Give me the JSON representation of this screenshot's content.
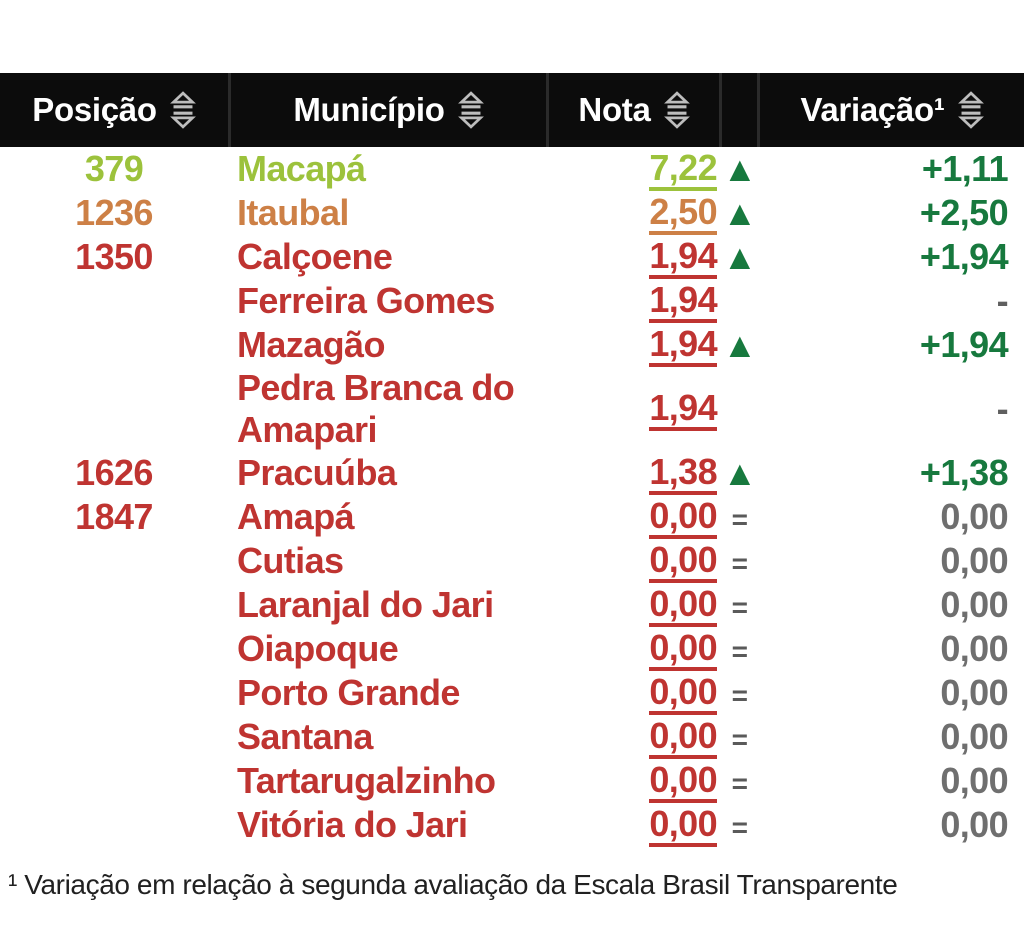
{
  "colors": {
    "lime": "#9cc23c",
    "orange": "#cd8046",
    "red": "#bf3431",
    "green": "#17793e",
    "gray": "#6f6f6f",
    "equal-gray": "#5a5a5a",
    "dash-gray": "#5f5f5f",
    "header-bg": "#0c0c0c",
    "header-divider": "#2b2b2b",
    "header-text": "#ffffff",
    "icon-gray": "#bdbdbd",
    "footnote-text": "#212121",
    "page-bg": "#ffffff"
  },
  "icons": {
    "sort_icon": "sort-arrows-icon",
    "trend_up_glyph": "▲",
    "trend_equal_glyph": "="
  },
  "table": {
    "headers": [
      {
        "label": "Posição",
        "sortable": true
      },
      {
        "label": "Município",
        "sortable": true
      },
      {
        "label": "Nota",
        "sortable": true
      },
      {
        "label": "",
        "sortable": false
      },
      {
        "label": "Variação¹",
        "sortable": true
      }
    ],
    "rows": [
      {
        "position": "379",
        "municipality": "Macapá",
        "score": "7,22",
        "trend": "up",
        "variation": "+1,11",
        "theme": "lime"
      },
      {
        "position": "1236",
        "municipality": "Itaubal",
        "score": "2,50",
        "trend": "up",
        "variation": "+2,50",
        "theme": "orange"
      },
      {
        "position": "1350",
        "municipality": "Calçoene",
        "score": "1,94",
        "trend": "up",
        "variation": "+1,94",
        "theme": "red"
      },
      {
        "position": "",
        "municipality": "Ferreira Gomes",
        "score": "1,94",
        "trend": "none",
        "variation": "-",
        "theme": "red"
      },
      {
        "position": "",
        "municipality": "Mazagão",
        "score": "1,94",
        "trend": "up",
        "variation": "+1,94",
        "theme": "red"
      },
      {
        "position": "",
        "municipality": "Pedra Branca do Amapari",
        "score": "1,94",
        "trend": "none",
        "variation": "-",
        "theme": "red"
      },
      {
        "position": "1626",
        "municipality": "Pracuúba",
        "score": "1,38",
        "trend": "up",
        "variation": "+1,38",
        "theme": "red"
      },
      {
        "position": "1847",
        "municipality": "Amapá",
        "score": "0,00",
        "trend": "equal",
        "variation": "0,00",
        "theme": "red"
      },
      {
        "position": "",
        "municipality": "Cutias",
        "score": "0,00",
        "trend": "equal",
        "variation": "0,00",
        "theme": "red"
      },
      {
        "position": "",
        "municipality": "Laranjal do Jari",
        "score": "0,00",
        "trend": "equal",
        "variation": "0,00",
        "theme": "red"
      },
      {
        "position": "",
        "municipality": "Oiapoque",
        "score": "0,00",
        "trend": "equal",
        "variation": "0,00",
        "theme": "red"
      },
      {
        "position": "",
        "municipality": "Porto Grande",
        "score": "0,00",
        "trend": "equal",
        "variation": "0,00",
        "theme": "red"
      },
      {
        "position": "",
        "municipality": "Santana",
        "score": "0,00",
        "trend": "equal",
        "variation": "0,00",
        "theme": "red"
      },
      {
        "position": "",
        "municipality": "Tartarugalzinho",
        "score": "0,00",
        "trend": "equal",
        "variation": "0,00",
        "theme": "red"
      },
      {
        "position": "",
        "municipality": "Vitória do Jari",
        "score": "0,00",
        "trend": "equal",
        "variation": "0,00",
        "theme": "red"
      }
    ]
  },
  "footnote": "¹ Variação em relação à segunda avaliação da Escala Brasil Transparente"
}
